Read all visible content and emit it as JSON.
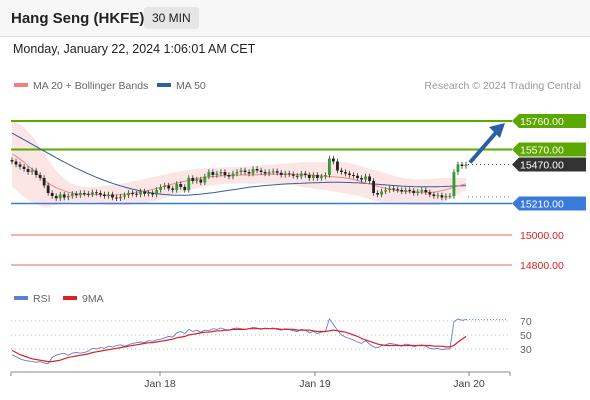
{
  "header": {
    "title": "Hang Seng (HKFE)",
    "timeframe": "30 MIN"
  },
  "date": "Monday, January 22, 2024 1:06:01 AM CET",
  "legend": {
    "ma20": {
      "label": "MA 20 + Bollinger Bands",
      "color": "#f08080"
    },
    "ma50": {
      "label": "MA 50",
      "color": "#2f5f9f"
    }
  },
  "credit": "Research © 2024 Trading Central",
  "rsi_legend": {
    "rsi": {
      "label": "RSI",
      "color": "#5b7fd6"
    },
    "ma9": {
      "label": "9MA",
      "color": "#e02020"
    }
  },
  "colors": {
    "resistance": "#5aa800",
    "pivot": "#3a7ad9",
    "support": "#f08080",
    "last": "#333333",
    "arrow": "#2a5ea8"
  },
  "chart_data": [
    {
      "type": "candlestick",
      "x_ticks": [
        "Jan 18",
        "Jan 19",
        "Jan 20"
      ],
      "price_range": [
        14700,
        15900
      ],
      "levels": [
        {
          "label": "15760.00",
          "value": 15760,
          "kind": "resistance"
        },
        {
          "label": "15570.00",
          "value": 15570,
          "kind": "resistance"
        },
        {
          "label": "15470.00",
          "value": 15470,
          "kind": "last"
        },
        {
          "label": "15210.00",
          "value": 15210,
          "kind": "pivot"
        },
        {
          "label": "15000.00",
          "value": 15000,
          "kind": "support"
        },
        {
          "label": "14800.00",
          "value": 14800,
          "kind": "support"
        }
      ],
      "close": [
        15490,
        15470,
        15455,
        15440,
        15420,
        15430,
        15400,
        15380,
        15330,
        15280,
        15260,
        15245,
        15270,
        15250,
        15260,
        15275,
        15265,
        15280,
        15275,
        15270,
        15285,
        15280,
        15270,
        15260,
        15270,
        15250,
        15245,
        15255,
        15265,
        15280,
        15275,
        15270,
        15290,
        15275,
        15280,
        15270,
        15300,
        15320,
        15330,
        15310,
        15300,
        15340,
        15320,
        15300,
        15380,
        15360,
        15370,
        15350,
        15390,
        15420,
        15400,
        15410,
        15420,
        15400,
        15390,
        15410,
        15420,
        15430,
        15420,
        15410,
        15440,
        15430,
        15420,
        15410,
        15420,
        15425,
        15415,
        15400,
        15410,
        15405,
        15395,
        15390,
        15410,
        15400,
        15380,
        15400,
        15380,
        15390,
        15400,
        15510,
        15490,
        15430,
        15420,
        15410,
        15400,
        15395,
        15380,
        15370,
        15390,
        15360,
        15280,
        15270,
        15290,
        15300,
        15310,
        15305,
        15300,
        15290,
        15300,
        15295,
        15280,
        15290,
        15300,
        15285,
        15270,
        15260,
        15265,
        15250,
        15260,
        15260,
        15420,
        15470,
        15460,
        15470
      ],
      "ma20": [
        15540,
        15525,
        15505,
        15485,
        15460,
        15440,
        15420,
        15390,
        15365,
        15345,
        15330,
        15315,
        15305,
        15295,
        15285,
        15280,
        15275,
        15272,
        15270,
        15270,
        15270,
        15270,
        15268,
        15266,
        15265,
        15265,
        15268,
        15270,
        15272,
        15275,
        15280,
        15285,
        15288,
        15292,
        15298,
        15305,
        15310,
        15318,
        15325,
        15332,
        15340,
        15346,
        15352,
        15358,
        15364,
        15370,
        15376,
        15380,
        15384,
        15388,
        15390,
        15392,
        15394,
        15396,
        15397,
        15398,
        15399,
        15400,
        15400,
        15400,
        15401,
        15402,
        15403,
        15404,
        15405,
        15406,
        15406,
        15406,
        15406,
        15406,
        15405,
        15404,
        15403,
        15402,
        15400,
        15398,
        15396,
        15394,
        15392,
        15390,
        15388,
        15386,
        15384,
        15380,
        15376,
        15370,
        15364,
        15356,
        15348,
        15340,
        15332,
        15325,
        15318,
        15312,
        15306,
        15300,
        15296,
        15293,
        15290,
        15288,
        15287,
        15286,
        15285,
        15285,
        15285,
        15286,
        15290,
        15296,
        15303,
        15310,
        15318,
        15326,
        15334,
        15340
      ],
      "bb_upper": [
        15760,
        15750,
        15735,
        15715,
        15690,
        15660,
        15625,
        15585,
        15545,
        15505,
        15465,
        15430,
        15400,
        15375,
        15355,
        15340,
        15330,
        15325,
        15322,
        15320,
        15320,
        15322,
        15325,
        15328,
        15330,
        15332,
        15336,
        15340,
        15345,
        15350,
        15356,
        15362,
        15368,
        15374,
        15380,
        15386,
        15392,
        15398,
        15404,
        15410,
        15416,
        15420,
        15424,
        15428,
        15432,
        15436,
        15440,
        15443,
        15445,
        15447,
        15448,
        15449,
        15450,
        15451,
        15452,
        15453,
        15454,
        15455,
        15456,
        15458,
        15460,
        15462,
        15464,
        15466,
        15468,
        15470,
        15472,
        15474,
        15476,
        15478,
        15480,
        15482,
        15484,
        15486,
        15486,
        15486,
        15486,
        15486,
        15486,
        15486,
        15486,
        15486,
        15486,
        15484,
        15480,
        15474,
        15466,
        15458,
        15450,
        15442,
        15434,
        15426,
        15418,
        15410,
        15402,
        15395,
        15388,
        15382,
        15378,
        15375,
        15373,
        15372,
        15372,
        15372,
        15373,
        15375,
        15378,
        15380,
        15380,
        15380,
        15380,
        15380,
        15380,
        15380
      ],
      "bb_lower": [
        15320,
        15300,
        15275,
        15255,
        15230,
        15220,
        15215,
        15195,
        15185,
        15185,
        15195,
        15200,
        15210,
        15215,
        15215,
        15220,
        15220,
        15220,
        15218,
        15220,
        15220,
        15218,
        15211,
        15204,
        15200,
        15198,
        15200,
        15200,
        15199,
        15200,
        15204,
        15208,
        15208,
        15210,
        15216,
        15224,
        15228,
        15238,
        15246,
        15254,
        15264,
        15272,
        15280,
        15288,
        15296,
        15304,
        15312,
        15317,
        15323,
        15329,
        15332,
        15335,
        15338,
        15341,
        15342,
        15343,
        15344,
        15345,
        15344,
        15342,
        15342,
        15342,
        15342,
        15342,
        15342,
        15342,
        15340,
        15338,
        15336,
        15334,
        15330,
        15326,
        15322,
        15318,
        15314,
        15310,
        15306,
        15302,
        15298,
        15294,
        15290,
        15286,
        15282,
        15276,
        15272,
        15266,
        15262,
        15254,
        15246,
        15238,
        15230,
        15224,
        15218,
        15214,
        15210,
        15205,
        15204,
        15204,
        15202,
        15201,
        15201,
        15200,
        15198,
        15198,
        15197,
        15197,
        15202,
        15212,
        15226,
        15240,
        15256,
        15272,
        15288,
        15300
      ],
      "ma50": [
        15680,
        15665,
        15650,
        15635,
        15620,
        15605,
        15590,
        15575,
        15560,
        15545,
        15530,
        15515,
        15500,
        15486,
        15472,
        15458,
        15445,
        15432,
        15420,
        15408,
        15396,
        15385,
        15374,
        15364,
        15354,
        15345,
        15336,
        15328,
        15320,
        15313,
        15306,
        15300,
        15294,
        15289,
        15284,
        15280,
        15276,
        15273,
        15270,
        15268,
        15266,
        15265,
        15265,
        15265,
        15266,
        15268,
        15270,
        15273,
        15276,
        15279,
        15282,
        15286,
        15290,
        15294,
        15298,
        15302,
        15306,
        15310,
        15314,
        15318,
        15321,
        15324,
        15327,
        15330,
        15332,
        15334,
        15336,
        15338,
        15340,
        15342,
        15343,
        15344,
        15345,
        15346,
        15347,
        15348,
        15349,
        15350,
        15351,
        15352,
        15352,
        15352,
        15352,
        15351,
        15350,
        15349,
        15348,
        15346,
        15344,
        15342,
        15340,
        15338,
        15336,
        15334,
        15332,
        15330,
        15328,
        15326,
        15325,
        15324,
        15323,
        15322,
        15321,
        15321,
        15321,
        15321,
        15322,
        15323,
        15324,
        15325,
        15326,
        15327,
        15328,
        15329
      ]
    },
    {
      "type": "line",
      "title": "RSI",
      "ylim": [
        0,
        100
      ],
      "y_ticks": [
        70,
        50,
        30
      ],
      "series": [
        {
          "name": "RSI",
          "values": [
            22,
            19,
            16,
            14,
            13,
            12,
            11,
            12,
            10,
            9,
            18,
            21,
            23,
            24,
            21,
            24,
            25,
            24,
            25,
            27,
            31,
            30,
            32,
            31,
            34,
            33,
            35,
            36,
            34,
            36,
            38,
            39,
            40,
            39,
            42,
            41,
            43,
            44,
            46,
            48,
            47,
            53,
            55,
            52,
            58,
            55,
            57,
            54,
            57,
            56,
            59,
            58,
            60,
            58,
            57,
            59,
            60,
            59,
            58,
            59,
            61,
            60,
            58,
            60,
            59,
            60,
            58,
            57,
            59,
            58,
            56,
            55,
            58,
            57,
            53,
            55,
            52,
            54,
            55,
            73,
            65,
            57,
            50,
            47,
            45,
            43,
            40,
            38,
            42,
            37,
            33,
            32,
            35,
            36,
            38,
            37,
            36,
            34,
            37,
            36,
            33,
            35,
            36,
            34,
            31,
            30,
            31,
            29,
            30,
            30,
            69,
            73,
            71,
            72
          ]
        },
        {
          "name": "9MA",
          "values": [
            28,
            25,
            22,
            20,
            18,
            16,
            15,
            14,
            13,
            12,
            12,
            13,
            14,
            16,
            18,
            19,
            20,
            21,
            22,
            23,
            25,
            26,
            27,
            28,
            29,
            30,
            31,
            32,
            33,
            34,
            35,
            36,
            37,
            38,
            39,
            39,
            40,
            41,
            42,
            43,
            44,
            46,
            47,
            48,
            50,
            51,
            52,
            53,
            54,
            54,
            55,
            56,
            56,
            57,
            57,
            58,
            58,
            58,
            58,
            59,
            59,
            59,
            59,
            59,
            59,
            59,
            59,
            58,
            58,
            58,
            58,
            57,
            57,
            57,
            57,
            56,
            55,
            55,
            55,
            56,
            57,
            56,
            55,
            54,
            52,
            50,
            48,
            45,
            43,
            41,
            39,
            37,
            36,
            35,
            35,
            35,
            35,
            35,
            35,
            35,
            35,
            35,
            35,
            35,
            35,
            34,
            34,
            34,
            33,
            33,
            35,
            40,
            44,
            48
          ]
        }
      ]
    }
  ]
}
